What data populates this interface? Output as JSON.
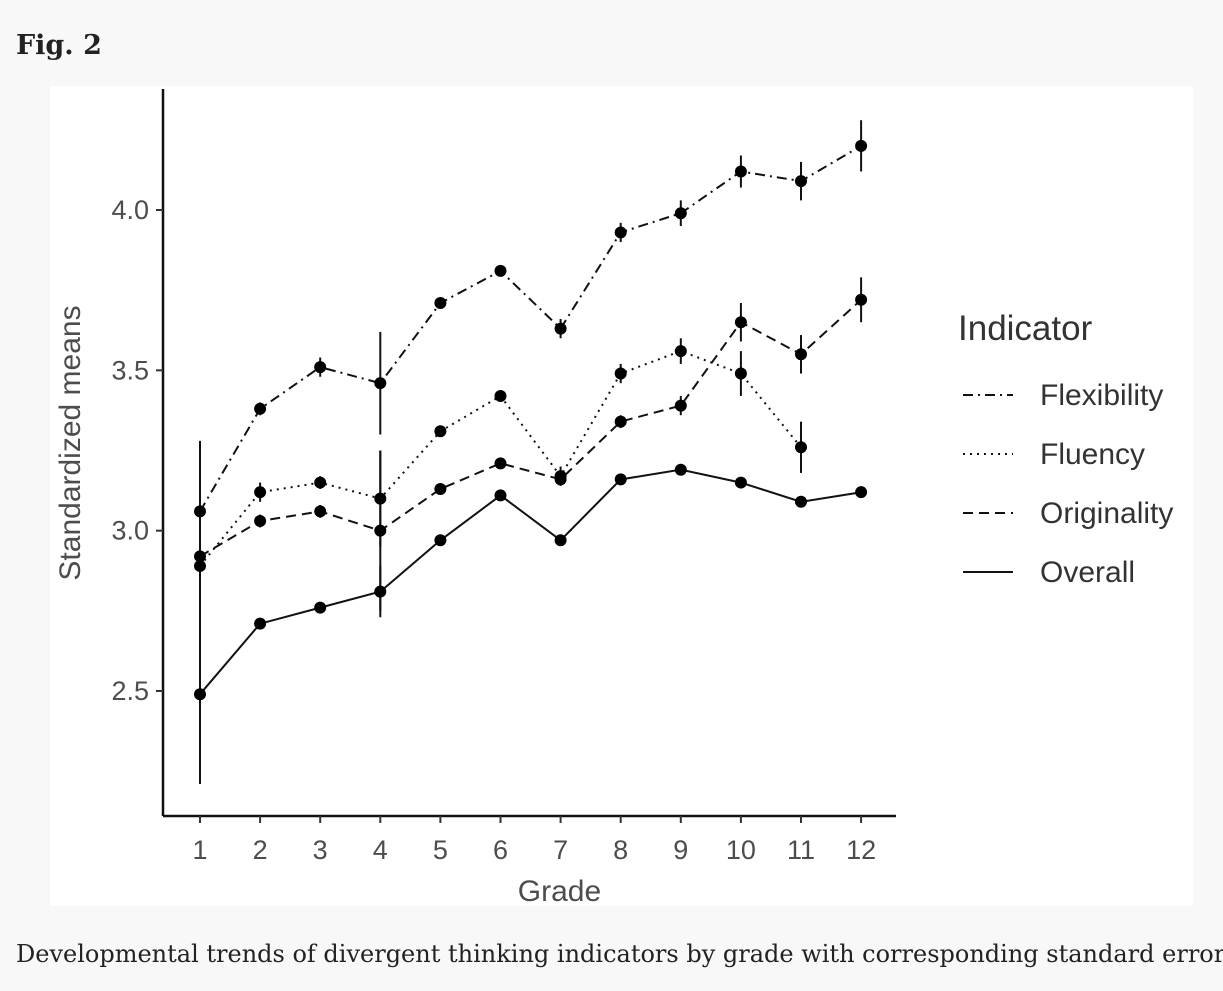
{
  "figure": {
    "label": "Fig. 2",
    "caption": "Developmental trends of divergent thinking indicators by grade with corresponding standard errors"
  },
  "chart_data": {
    "type": "line",
    "title": "",
    "xlabel": "Grade",
    "ylabel": "Standardized means",
    "categories": [
      1,
      2,
      3,
      4,
      5,
      6,
      7,
      8,
      9,
      10,
      11,
      12
    ],
    "ylim": [
      2.1,
      4.3
    ],
    "yticks": [
      2.5,
      3.0,
      3.5,
      4.0
    ],
    "ytick_labels": [
      "2.5",
      "3.0",
      "3.5",
      "4.0"
    ],
    "grid": false,
    "legend": {
      "title": "Indicator",
      "position": "right"
    },
    "error_bars": "standard errors",
    "series": [
      {
        "name": "Flexibility",
        "line_style": "dot-dash",
        "values": [
          3.06,
          3.38,
          3.51,
          3.46,
          3.71,
          3.81,
          3.63,
          3.93,
          3.99,
          4.12,
          4.09,
          4.2
        ],
        "se": [
          0.22,
          0.02,
          0.03,
          0.16,
          0.01,
          0.01,
          0.03,
          0.03,
          0.04,
          0.05,
          0.06,
          0.08
        ]
      },
      {
        "name": "Fluency",
        "line_style": "dotted",
        "values": [
          2.89,
          3.12,
          3.15,
          3.1,
          3.31,
          3.42,
          3.17,
          3.49,
          3.56,
          3.49,
          3.26,
          null
        ],
        "se": [
          0.3,
          0.03,
          0.02,
          0.15,
          0.01,
          0.01,
          0.03,
          0.03,
          0.04,
          0.07,
          0.08,
          null
        ]
      },
      {
        "name": "Originality",
        "line_style": "dashed",
        "values": [
          2.92,
          3.03,
          3.06,
          3.0,
          3.13,
          3.21,
          3.16,
          3.34,
          3.39,
          3.65,
          3.55,
          3.72
        ],
        "se": [
          0.35,
          0.02,
          0.02,
          0.25,
          0.01,
          0.01,
          0.02,
          0.02,
          0.03,
          0.06,
          0.06,
          0.07
        ]
      },
      {
        "name": "Overall",
        "line_style": "solid",
        "values": [
          2.49,
          2.71,
          2.76,
          2.81,
          2.97,
          3.11,
          2.97,
          3.16,
          3.19,
          3.15,
          3.09,
          3.12
        ],
        "se": [
          0.28,
          0.01,
          0.01,
          0.08,
          0.01,
          0.01,
          0.01,
          0.01,
          0.01,
          0.01,
          0.01,
          0.01
        ]
      }
    ]
  }
}
